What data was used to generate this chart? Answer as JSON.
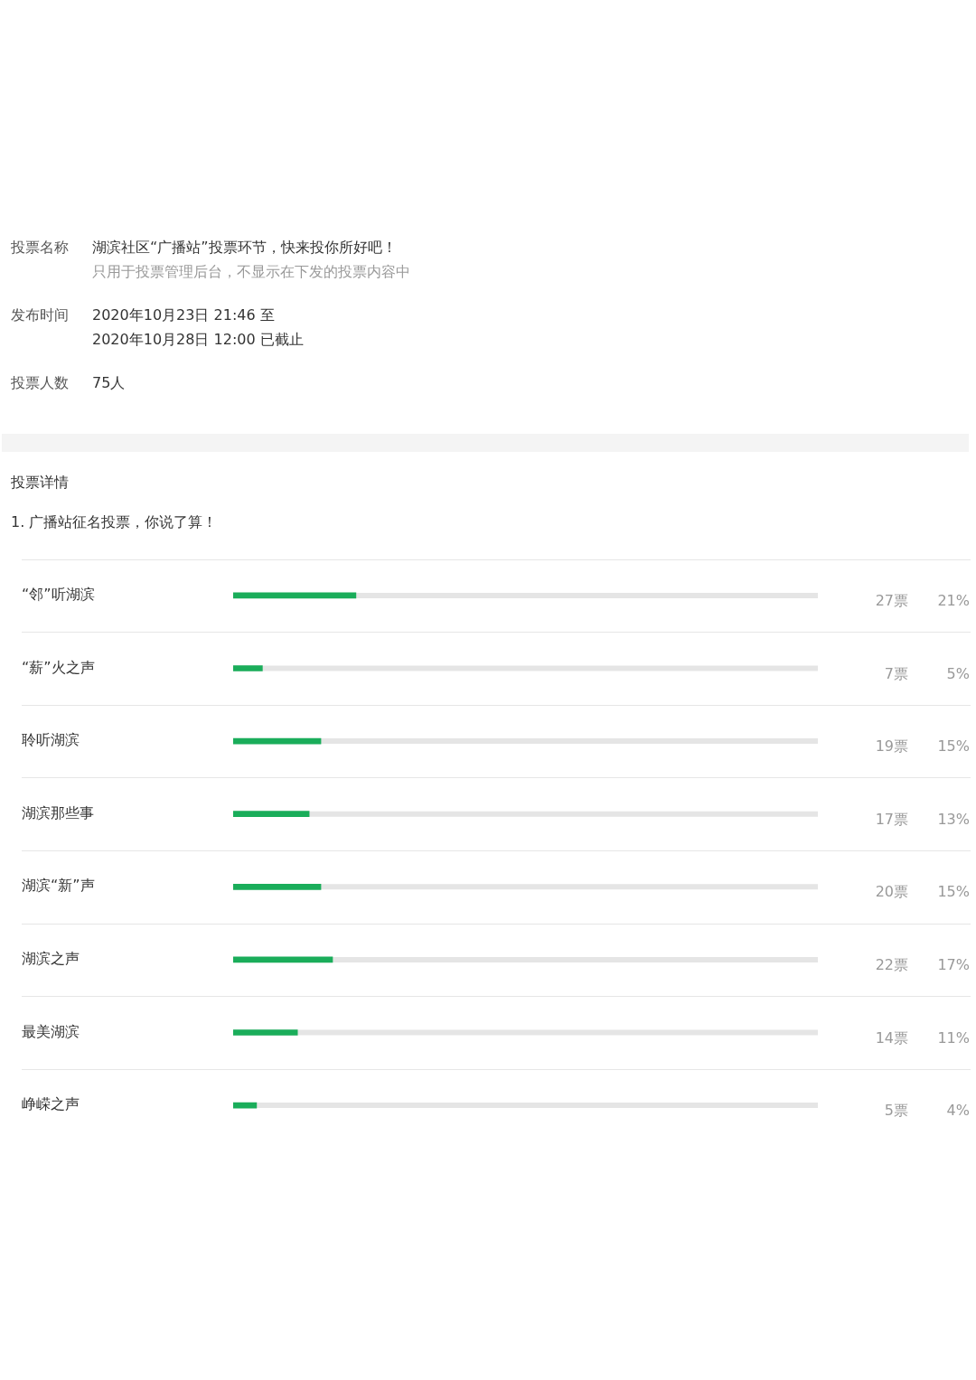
{
  "chart_data": {
    "type": "bar",
    "orientation": "horizontal",
    "title": "1. 广播站征名投票，你说了算！",
    "subtitle": "投票详情",
    "categories": [
      "“邻”听湖滨",
      "“薪”火之声",
      "聆听湖滨",
      "湖滨那些事",
      "湖滨“新”声",
      "湖滨之声",
      "最美湖滨",
      "峥嵘之声"
    ],
    "values": [
      21,
      5,
      15,
      13,
      15,
      17,
      11,
      4
    ],
    "value_labels": [
      "21%",
      "5%",
      "15%",
      "13%",
      "15%",
      "17%",
      "11%",
      "4%"
    ],
    "color": "#1aad5a",
    "xlim": [
      0,
      100
    ],
    "tick_labels": "y",
    "grid": "y",
    "annotations": [
      "投票名称",
      "湖滨社区“广播站”投票环节，快来投你所好吧！",
      "只用于投票管理后台，不显示在下发的投票内容中",
      "发布时间",
      "2020年10月23日 21:46 至",
      "2020年10月28日 12:00 已截止",
      "投票人数",
      "75人",
      "27票",
      "7票",
      "19票",
      "17票",
      "20票",
      "22票",
      "14票",
      "5票"
    ]
  }
}
